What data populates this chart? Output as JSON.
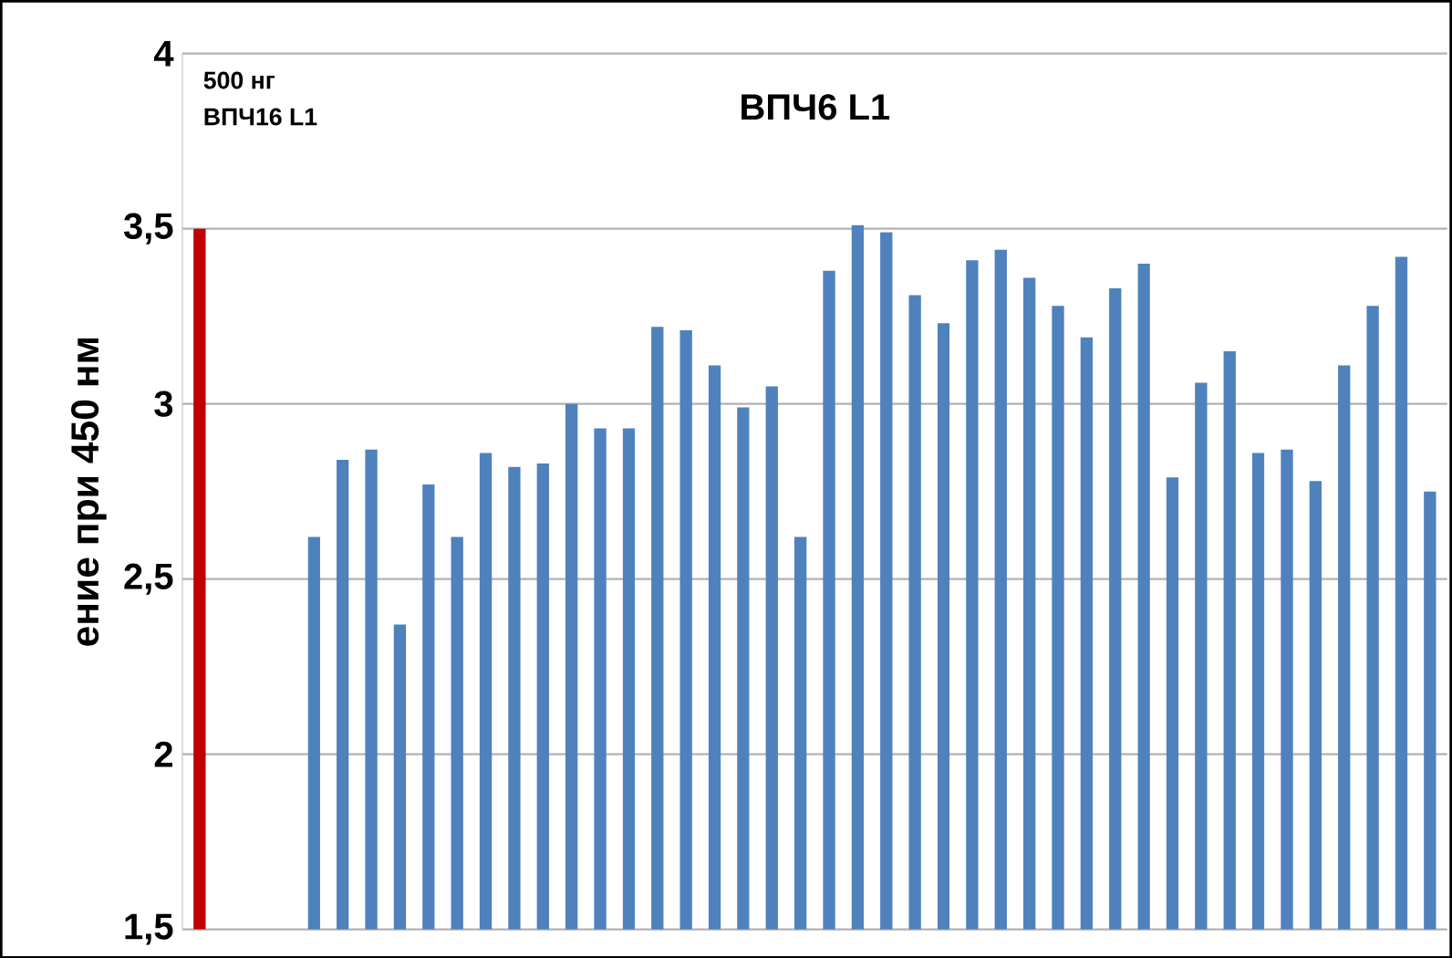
{
  "chart_data": {
    "type": "bar",
    "title": "ВПЧ6 L1",
    "ylabel": "ение при 450 нм",
    "annotations": [
      "500 нг",
      "ВПЧ16 L1"
    ],
    "categories": [
      null,
      null,
      null,
      null,
      null,
      null,
      null,
      null,
      null,
      null,
      null,
      null,
      null,
      null,
      null,
      null,
      null,
      null,
      null,
      null,
      null,
      null,
      null,
      null,
      null,
      null,
      null,
      null,
      null,
      null,
      null,
      null,
      null,
      null,
      null,
      null,
      null,
      null,
      null,
      null,
      null,
      null,
      null,
      null
    ],
    "values": [
      3.5,
      null,
      null,
      null,
      2.62,
      2.84,
      2.87,
      2.37,
      2.77,
      2.62,
      2.86,
      2.82,
      2.83,
      3.0,
      2.93,
      2.93,
      3.22,
      3.21,
      3.11,
      2.99,
      3.05,
      2.62,
      3.38,
      3.51,
      3.49,
      3.31,
      3.23,
      3.41,
      3.44,
      3.36,
      3.28,
      3.19,
      3.33,
      3.4,
      2.79,
      3.06,
      3.15,
      2.86,
      2.87,
      2.78,
      3.11,
      3.28,
      3.42,
      2.75
    ],
    "colors": [
      "#c00000",
      "#4f81bd",
      "#4f81bd",
      "#4f81bd",
      "#4f81bd",
      "#4f81bd",
      "#4f81bd",
      "#4f81bd",
      "#4f81bd",
      "#4f81bd",
      "#4f81bd",
      "#4f81bd",
      "#4f81bd",
      "#4f81bd",
      "#4f81bd",
      "#4f81bd",
      "#4f81bd",
      "#4f81bd",
      "#4f81bd",
      "#4f81bd",
      "#4f81bd",
      "#4f81bd",
      "#4f81bd",
      "#4f81bd",
      "#4f81bd",
      "#4f81bd",
      "#4f81bd",
      "#4f81bd",
      "#4f81bd",
      "#4f81bd",
      "#4f81bd",
      "#4f81bd",
      "#4f81bd",
      "#4f81bd",
      "#4f81bd",
      "#4f81bd",
      "#4f81bd",
      "#4f81bd",
      "#4f81bd",
      "#4f81bd",
      "#4f81bd",
      "#4f81bd",
      "#4f81bd",
      "#4f81bd"
    ],
    "ylim": [
      1.5,
      4
    ],
    "yticks": [
      {
        "value": 1.5,
        "label": "1,5"
      },
      2,
      {
        "value": 2.5,
        "label": "2,5"
      },
      3,
      {
        "value": 3.5,
        "label": "3,5"
      },
      4
    ],
    "grid": "y",
    "tick_labels": "y"
  }
}
